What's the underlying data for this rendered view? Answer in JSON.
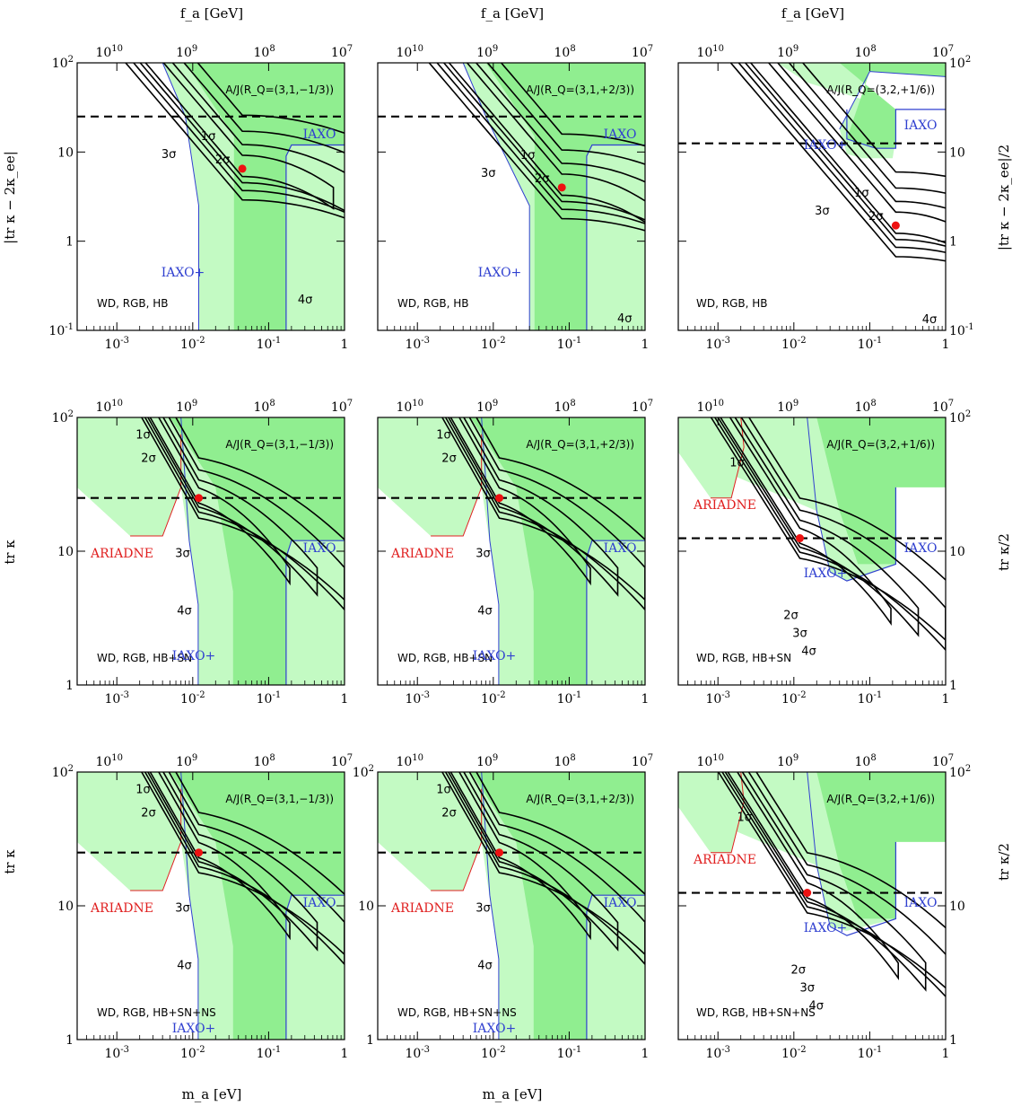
{
  "figure": {
    "top_axis_label": "f_a [GeV]",
    "bottom_axis_label": "m_a [eV]",
    "x_ticks": [
      "10^-3",
      "10^-2",
      "10^-1",
      "1"
    ],
    "top_ticks": [
      "10^10",
      "10^9",
      "10^8",
      "10^7"
    ]
  },
  "colors": {
    "excluded_fill": "#90ee90",
    "iaxo_plus_fill": "#c3fac3",
    "iaxo_line": "#3040d0",
    "ariadne": "#e02020",
    "contour": "#000000",
    "best_fit": "#ee1111"
  },
  "row_labels": {
    "row1_left": "|tr κ − 2κ_ee|",
    "row1_right": "|tr κ − 2κ_ee|/2",
    "row2_left": "tr κ",
    "row2_right": "tr κ/2",
    "row3_left": "tr κ",
    "row3_right": "tr κ/2"
  },
  "chart_data": [
    {
      "type": "line",
      "panel": "r1c1",
      "model": "A/J(R_Q=(3,1,−1/3))",
      "bounds": "WD, RGB, HB",
      "xscale": "log",
      "yscale": "log",
      "xlim": [
        0.0003,
        1
      ],
      "ylim": [
        0.1,
        100
      ],
      "y_ticks": [
        "10^-1",
        "1",
        "10",
        "10^2"
      ],
      "best_fit": {
        "x": 0.045,
        "y": 6.5
      },
      "dashed_y": 25,
      "labels": [
        "1σ",
        "2σ",
        "3σ",
        "4σ",
        "IAXO",
        "IAXO+"
      ]
    },
    {
      "type": "line",
      "panel": "r1c2",
      "model": "A/J(R_Q=(3,1,+2/3))",
      "bounds": "WD, RGB, HB",
      "xscale": "log",
      "yscale": "log",
      "xlim": [
        0.0003,
        1
      ],
      "ylim": [
        0.1,
        100
      ],
      "y_ticks": [
        "10^-1",
        "1",
        "10",
        "10^2"
      ],
      "best_fit": {
        "x": 0.08,
        "y": 4
      },
      "dashed_y": 25,
      "labels": [
        "1σ",
        "2σ",
        "3σ",
        "4σ",
        "IAXO",
        "IAXO+"
      ]
    },
    {
      "type": "line",
      "panel": "r1c3",
      "model": "A/J(R_Q=(3,2,+1/6))",
      "bounds": "WD, RGB, HB",
      "xscale": "log",
      "yscale": "log",
      "xlim": [
        0.0003,
        1
      ],
      "ylim": [
        0.1,
        100
      ],
      "y_ticks": [
        "10^-1",
        "1",
        "10",
        "10^2"
      ],
      "best_fit": {
        "x": 0.22,
        "y": 1.5
      },
      "dashed_y": 12.5,
      "labels": [
        "1σ",
        "2σ",
        "3σ",
        "4σ",
        "IAXO",
        "IAXO+"
      ]
    },
    {
      "type": "line",
      "panel": "r2c1",
      "model": "A/J(R_Q=(3,1,−1/3))",
      "bounds": "WD, RGB, HB+SN",
      "xscale": "log",
      "yscale": "log",
      "xlim": [
        0.0003,
        1
      ],
      "ylim": [
        1,
        100
      ],
      "y_ticks": [
        "1",
        "10",
        "10^2"
      ],
      "best_fit": {
        "x": 0.012,
        "y": 25
      },
      "dashed_y": 25,
      "labels": [
        "1σ",
        "2σ",
        "3σ",
        "4σ",
        "IAXO",
        "IAXO+",
        "ARIADNE"
      ]
    },
    {
      "type": "line",
      "panel": "r2c2",
      "model": "A/J(R_Q=(3,1,+2/3))",
      "bounds": "WD, RGB, HB+SN",
      "xscale": "log",
      "yscale": "log",
      "xlim": [
        0.0003,
        1
      ],
      "ylim": [
        1,
        100
      ],
      "y_ticks": [
        "1",
        "10",
        "10^2"
      ],
      "best_fit": {
        "x": 0.012,
        "y": 25
      },
      "dashed_y": 25,
      "labels": [
        "1σ",
        "2σ",
        "3σ",
        "4σ",
        "IAXO",
        "IAXO+",
        "ARIADNE"
      ]
    },
    {
      "type": "line",
      "panel": "r2c3",
      "model": "A/J(R_Q=(3,2,+1/6))",
      "bounds": "WD, RGB, HB+SN",
      "xscale": "log",
      "yscale": "log",
      "xlim": [
        0.0003,
        1
      ],
      "ylim": [
        1,
        100
      ],
      "y_ticks": [
        "1",
        "10",
        "10^2"
      ],
      "best_fit": {
        "x": 0.012,
        "y": 12.5
      },
      "dashed_y": 12.5,
      "labels": [
        "1σ",
        "2σ",
        "3σ",
        "4σ",
        "IAXO",
        "IAXO+",
        "ARIADNE"
      ]
    },
    {
      "type": "line",
      "panel": "r3c1",
      "model": "A/J(R_Q=(3,1,−1/3))",
      "bounds": "WD, RGB, HB+SN+NS",
      "xscale": "log",
      "yscale": "log",
      "xlim": [
        0.0003,
        1
      ],
      "ylim": [
        1,
        100
      ],
      "y_ticks": [
        "1",
        "10",
        "10^2"
      ],
      "best_fit": {
        "x": 0.012,
        "y": 25
      },
      "dashed_y": 25,
      "labels": [
        "1σ",
        "2σ",
        "3σ",
        "4σ",
        "IAXO",
        "IAXO+",
        "ARIADNE"
      ]
    },
    {
      "type": "line",
      "panel": "r3c2",
      "model": "A/J(R_Q=(3,1,+2/3))",
      "bounds": "WD, RGB, HB+SN+NS",
      "xscale": "log",
      "yscale": "log",
      "xlim": [
        0.0003,
        1
      ],
      "ylim": [
        1,
        100
      ],
      "y_ticks": [
        "1",
        "10",
        "10^2"
      ],
      "best_fit": {
        "x": 0.012,
        "y": 25
      },
      "dashed_y": 25,
      "labels": [
        "1σ",
        "2σ",
        "3σ",
        "4σ",
        "IAXO",
        "IAXO+",
        "ARIADNE"
      ]
    },
    {
      "type": "line",
      "panel": "r3c3",
      "model": "A/J(R_Q=(3,2,+1/6))",
      "bounds": "WD, RGB, HB+SN+NS",
      "xscale": "log",
      "yscale": "log",
      "xlim": [
        0.0003,
        1
      ],
      "ylim": [
        1,
        100
      ],
      "y_ticks": [
        "1",
        "10",
        "10^2"
      ],
      "best_fit": {
        "x": 0.015,
        "y": 12.5
      },
      "dashed_y": 12.5,
      "labels": [
        "1σ",
        "2σ",
        "3σ",
        "4σ",
        "IAXO",
        "IAXO+",
        "ARIADNE"
      ]
    }
  ]
}
